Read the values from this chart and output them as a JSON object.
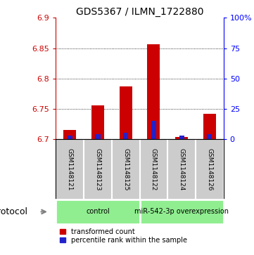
{
  "title": "GDS5367 / ILMN_1722880",
  "samples": [
    "GSM1148121",
    "GSM1148123",
    "GSM1148125",
    "GSM1148122",
    "GSM1148124",
    "GSM1148126"
  ],
  "transformed_counts": [
    6.715,
    6.755,
    6.787,
    6.856,
    6.703,
    6.742
  ],
  "percentile_ranks": [
    3,
    4,
    5,
    15,
    3,
    4
  ],
  "ylim_left": [
    6.7,
    6.9
  ],
  "ylim_right": [
    0,
    100
  ],
  "yticks_left": [
    6.7,
    6.75,
    6.8,
    6.85,
    6.9
  ],
  "yticks_right": [
    0,
    25,
    50,
    75,
    100
  ],
  "ytick_labels_left": [
    "6.7",
    "6.75",
    "6.8",
    "6.85",
    "6.9"
  ],
  "ytick_labels_right": [
    "0",
    "25",
    "50",
    "75",
    "100%"
  ],
  "group_color": "#90ee90",
  "bar_color_red": "#cc0000",
  "bar_color_blue": "#2222cc",
  "bar_width": 0.45,
  "blue_bar_width": 0.18,
  "background_color": "#ffffff",
  "sample_box_color": "#cccccc",
  "legend_red": "transformed count",
  "legend_blue": "percentile rank within the sample",
  "protocol_label": "protocol",
  "group_info": [
    {
      "label": "control",
      "start": 0,
      "end": 3
    },
    {
      "label": "miR-542-3p overexpression",
      "start": 3,
      "end": 6
    }
  ]
}
